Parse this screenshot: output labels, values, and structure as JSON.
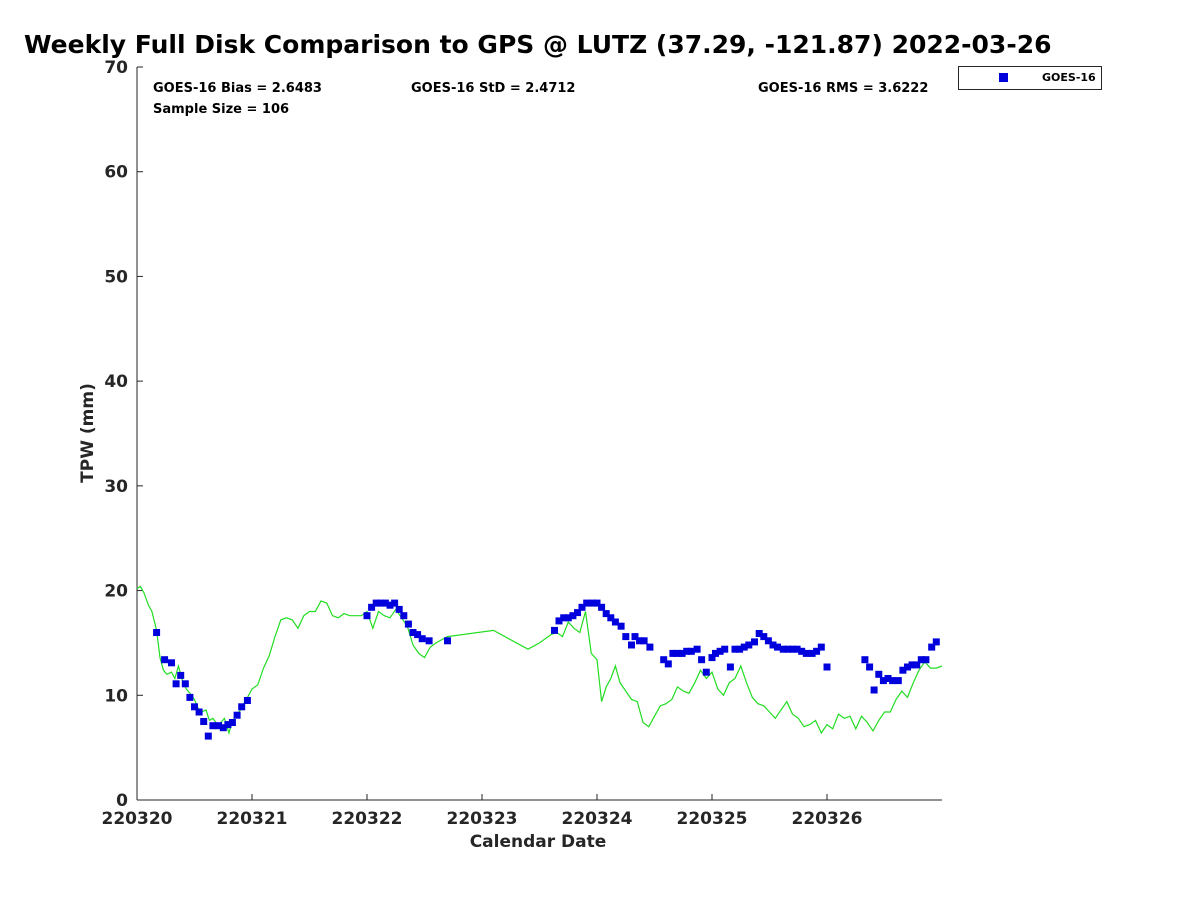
{
  "chart_data": {
    "type": "scatter",
    "title": "Weekly Full Disk Comparison to GPS @ LUTZ (37.29, -121.87) 2022-03-26",
    "xlabel": "Calendar Date",
    "ylabel": "TPW (mm)",
    "xlim": [
      0,
      7
    ],
    "ylim": [
      0,
      70
    ],
    "x_ticks": [
      0,
      1,
      2,
      3,
      4,
      5,
      6
    ],
    "x_tick_labels": [
      "220320",
      "220321",
      "220322",
      "220323",
      "220324",
      "220325",
      "220326"
    ],
    "y_ticks": [
      0,
      10,
      20,
      30,
      40,
      50,
      60,
      70
    ],
    "y_tick_labels": [
      "0",
      "10",
      "20",
      "30",
      "40",
      "50",
      "60",
      "70"
    ],
    "stats": {
      "bias": "GOES-16 Bias = 2.6483",
      "std": "GOES-16 StD = 2.4712",
      "rms": "GOES-16 RMS = 3.6222",
      "sample": "Sample Size = 106"
    },
    "legend": {
      "position": "top-right-outside",
      "entries": [
        "GOES-16"
      ]
    },
    "colors": {
      "goes": "#0000dd",
      "gps": "#22dd22"
    },
    "series": [
      {
        "name": "GOES-16",
        "marker": "square",
        "color": "#0000dd",
        "x": [
          0.17,
          0.24,
          0.3,
          0.34,
          0.38,
          0.42,
          0.46,
          0.5,
          0.54,
          0.58,
          0.62,
          0.66,
          0.71,
          0.75,
          0.79,
          0.83,
          0.87,
          0.91,
          0.96,
          2.0,
          2.04,
          2.08,
          2.12,
          2.16,
          2.2,
          2.24,
          2.28,
          2.32,
          2.36,
          2.4,
          2.44,
          2.48,
          2.54,
          2.7,
          3.63,
          3.67,
          3.71,
          3.75,
          3.79,
          3.83,
          3.87,
          3.91,
          3.96,
          4.0,
          4.04,
          4.08,
          4.12,
          4.16,
          4.21,
          4.25,
          4.3,
          4.33,
          4.37,
          4.41,
          4.46,
          4.58,
          4.62,
          4.66,
          4.7,
          4.74,
          4.78,
          4.82,
          4.87,
          4.91,
          4.95,
          5.0,
          5.03,
          5.07,
          5.11,
          5.16,
          5.2,
          5.24,
          5.28,
          5.32,
          5.37,
          5.41,
          5.45,
          5.49,
          5.53,
          5.57,
          5.62,
          5.66,
          5.7,
          5.74,
          5.78,
          5.82,
          5.87,
          5.91,
          5.95,
          6.0,
          6.33,
          6.37,
          6.41,
          6.45,
          6.49,
          6.53,
          6.57,
          6.62,
          6.66,
          6.7,
          6.74,
          6.78,
          6.82,
          6.86,
          6.91,
          6.95
        ],
        "y": [
          16.0,
          13.4,
          13.1,
          11.1,
          11.9,
          11.1,
          9.8,
          8.9,
          8.4,
          7.5,
          6.1,
          7.1,
          7.1,
          6.9,
          7.2,
          7.4,
          8.1,
          8.9,
          9.5,
          17.6,
          18.4,
          18.8,
          18.8,
          18.8,
          18.6,
          18.8,
          18.2,
          17.6,
          16.8,
          16.0,
          15.8,
          15.4,
          15.2,
          15.2,
          16.2,
          17.1,
          17.4,
          17.4,
          17.6,
          17.9,
          18.4,
          18.8,
          18.8,
          18.8,
          18.4,
          17.8,
          17.4,
          17.0,
          16.6,
          15.6,
          14.8,
          15.6,
          15.2,
          15.2,
          14.6,
          13.4,
          13.0,
          14.0,
          14.0,
          14.0,
          14.2,
          14.2,
          14.4,
          13.4,
          12.2,
          13.6,
          14.0,
          14.2,
          14.4,
          12.7,
          14.4,
          14.4,
          14.6,
          14.8,
          15.1,
          15.9,
          15.6,
          15.2,
          14.8,
          14.6,
          14.4,
          14.4,
          14.4,
          14.4,
          14.2,
          14.0,
          14.0,
          14.2,
          14.6,
          12.7,
          13.4,
          12.7,
          10.5,
          12.0,
          11.4,
          11.6,
          11.4,
          11.4,
          12.4,
          12.7,
          12.9,
          12.9,
          13.4,
          13.4,
          14.6,
          15.1
        ]
      },
      {
        "name": "",
        "marker": "line",
        "color": "#22dd22",
        "x": [
          0.0,
          0.03,
          0.06,
          0.1,
          0.13,
          0.17,
          0.2,
          0.23,
          0.26,
          0.3,
          0.33,
          0.36,
          0.4,
          0.43,
          0.46,
          0.5,
          0.53,
          0.56,
          0.6,
          0.63,
          0.66,
          0.7,
          0.73,
          0.76,
          0.8,
          0.83,
          0.86,
          0.9,
          0.93,
          0.97,
          1.0,
          1.05,
          1.1,
          1.15,
          1.2,
          1.25,
          1.3,
          1.35,
          1.4,
          1.45,
          1.5,
          1.55,
          1.6,
          1.65,
          1.7,
          1.75,
          1.8,
          1.85,
          1.9,
          1.95,
          2.0,
          2.05,
          2.1,
          2.15,
          2.2,
          2.25,
          2.3,
          2.35,
          2.4,
          2.45,
          2.5,
          2.55,
          2.6,
          2.7,
          3.1,
          3.4,
          3.5,
          3.6,
          3.65,
          3.7,
          3.75,
          3.8,
          3.85,
          3.9,
          3.95,
          4.0,
          4.04,
          4.08,
          4.12,
          4.16,
          4.2,
          4.25,
          4.3,
          4.35,
          4.4,
          4.45,
          4.5,
          4.55,
          4.6,
          4.65,
          4.7,
          4.75,
          4.8,
          4.85,
          4.9,
          4.95,
          5.0,
          5.05,
          5.1,
          5.15,
          5.2,
          5.25,
          5.3,
          5.35,
          5.4,
          5.45,
          5.5,
          5.55,
          5.6,
          5.65,
          5.7,
          5.75,
          5.8,
          5.85,
          5.9,
          5.95,
          6.0,
          6.05,
          6.1,
          6.15,
          6.2,
          6.25,
          6.3,
          6.35,
          6.4,
          6.45,
          6.5,
          6.55,
          6.6,
          6.65,
          6.7,
          6.75,
          6.8,
          6.85,
          6.9,
          6.95,
          7.0
        ],
        "y": [
          20.2,
          20.4,
          19.8,
          18.6,
          18.0,
          16.2,
          13.6,
          12.4,
          12.0,
          12.2,
          11.6,
          12.8,
          11.2,
          10.6,
          10.2,
          9.6,
          8.8,
          8.4,
          8.6,
          7.6,
          7.8,
          7.2,
          7.4,
          7.8,
          6.4,
          7.6,
          8.0,
          8.6,
          9.2,
          10.0,
          10.6,
          11.0,
          12.6,
          13.8,
          15.6,
          17.2,
          17.4,
          17.2,
          16.4,
          17.6,
          18.0,
          18.0,
          19.0,
          18.8,
          17.6,
          17.4,
          17.8,
          17.6,
          17.6,
          17.6,
          18.0,
          16.4,
          18.0,
          17.6,
          17.4,
          18.2,
          17.4,
          16.6,
          14.8,
          14.0,
          13.6,
          14.6,
          15.0,
          15.6,
          16.2,
          14.4,
          15.0,
          15.8,
          16.0,
          15.6,
          17.0,
          16.4,
          16.0,
          18.0,
          14.0,
          13.4,
          9.4,
          10.8,
          11.6,
          12.8,
          11.2,
          10.4,
          9.6,
          9.4,
          7.4,
          7.0,
          8.0,
          9.0,
          9.2,
          9.6,
          10.8,
          10.4,
          10.2,
          11.2,
          12.4,
          11.6,
          12.2,
          10.6,
          10.0,
          11.2,
          11.6,
          12.8,
          11.2,
          9.8,
          9.2,
          9.0,
          8.4,
          7.8,
          8.6,
          9.4,
          8.2,
          7.8,
          7.0,
          7.2,
          7.6,
          6.4,
          7.2,
          6.8,
          8.2,
          7.8,
          8.0,
          6.8,
          8.0,
          7.4,
          6.6,
          7.6,
          8.4,
          8.4,
          9.6,
          10.4,
          9.8,
          11.2,
          12.4,
          13.2,
          12.6,
          12.6,
          12.8
        ]
      }
    ]
  }
}
